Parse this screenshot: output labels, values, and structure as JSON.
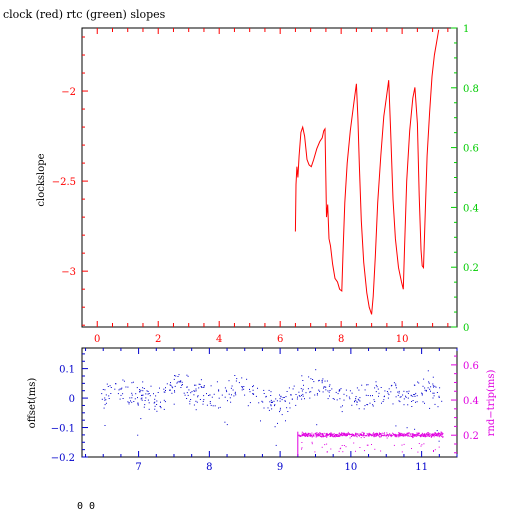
{
  "colors": {
    "axes": "#000000",
    "clock": "#ff0000",
    "rtc": "#00cc00",
    "offset": "#0000cc",
    "rndtrip": "#e000e0"
  },
  "footer_text": "0 0",
  "chart_data": [
    {
      "type": "line",
      "title": "clock (red) rtc (green) slopes",
      "xlabel": "",
      "ylabel": "clockslope",
      "xlim": [
        -0.5,
        11.8
      ],
      "ylim": [
        -3.31,
        -1.65
      ],
      "x_ticks": [
        0,
        2,
        4,
        6,
        8,
        10
      ],
      "y_ticks": [
        -3,
        -2.5,
        -2
      ],
      "y_tick_labels": [
        "−3",
        "−2.5",
        "−2"
      ],
      "y2lim": [
        0,
        1
      ],
      "y2_ticks": [
        0,
        0.2,
        0.4,
        0.6,
        0.8,
        1
      ],
      "y2_tick_labels": [
        "0",
        "0.2",
        "0.4",
        "0.6",
        "0.8",
        "1"
      ],
      "series": [
        {
          "name": "clock",
          "axis": "left",
          "points": [
            [
              6.5,
              -2.78
            ],
            [
              6.52,
              -2.52
            ],
            [
              6.55,
              -2.42
            ],
            [
              6.58,
              -2.48
            ],
            [
              6.62,
              -2.36
            ],
            [
              6.68,
              -2.23
            ],
            [
              6.74,
              -2.2
            ],
            [
              6.8,
              -2.25
            ],
            [
              6.88,
              -2.38
            ],
            [
              6.95,
              -2.41
            ],
            [
              7.02,
              -2.42
            ],
            [
              7.1,
              -2.38
            ],
            [
              7.2,
              -2.32
            ],
            [
              7.3,
              -2.28
            ],
            [
              7.38,
              -2.26
            ],
            [
              7.43,
              -2.22
            ],
            [
              7.47,
              -2.21
            ],
            [
              7.5,
              -2.5
            ],
            [
              7.52,
              -2.7
            ],
            [
              7.56,
              -2.63
            ],
            [
              7.6,
              -2.82
            ],
            [
              7.65,
              -2.86
            ],
            [
              7.72,
              -2.96
            ],
            [
              7.8,
              -3.04
            ],
            [
              7.88,
              -3.06
            ],
            [
              7.95,
              -3.1
            ],
            [
              8.02,
              -3.11
            ],
            [
              8.06,
              -2.9
            ],
            [
              8.12,
              -2.62
            ],
            [
              8.2,
              -2.4
            ],
            [
              8.3,
              -2.22
            ],
            [
              8.42,
              -2.06
            ],
            [
              8.5,
              -1.96
            ],
            [
              8.55,
              -2.15
            ],
            [
              8.6,
              -2.42
            ],
            [
              8.66,
              -2.72
            ],
            [
              8.74,
              -2.95
            ],
            [
              8.84,
              -3.12
            ],
            [
              8.92,
              -3.2
            ],
            [
              9.0,
              -3.24
            ],
            [
              9.05,
              -3.14
            ],
            [
              9.12,
              -2.92
            ],
            [
              9.2,
              -2.62
            ],
            [
              9.3,
              -2.36
            ],
            [
              9.4,
              -2.14
            ],
            [
              9.48,
              -2.04
            ],
            [
              9.56,
              -1.94
            ],
            [
              9.62,
              -2.2
            ],
            [
              9.7,
              -2.6
            ],
            [
              9.78,
              -2.82
            ],
            [
              9.88,
              -2.98
            ],
            [
              9.98,
              -3.06
            ],
            [
              10.04,
              -3.1
            ],
            [
              10.08,
              -2.86
            ],
            [
              10.15,
              -2.5
            ],
            [
              10.25,
              -2.22
            ],
            [
              10.35,
              -2.04
            ],
            [
              10.42,
              -1.98
            ],
            [
              10.5,
              -2.18
            ],
            [
              10.56,
              -2.58
            ],
            [
              10.62,
              -2.88
            ],
            [
              10.66,
              -2.97
            ],
            [
              10.7,
              -2.98
            ],
            [
              10.75,
              -2.72
            ],
            [
              10.82,
              -2.36
            ],
            [
              10.9,
              -2.12
            ],
            [
              10.98,
              -1.92
            ],
            [
              11.06,
              -1.8
            ],
            [
              11.14,
              -1.72
            ],
            [
              11.2,
              -1.66
            ]
          ]
        }
      ]
    },
    {
      "type": "scatter",
      "title": "",
      "xlabel": "",
      "ylabel": "offset(ms)",
      "y2label": "rnd−trip(ms)",
      "xlim": [
        6.2,
        11.5
      ],
      "ylim": [
        -0.2,
        0.17
      ],
      "x_ticks": [
        7,
        8,
        9,
        10,
        11
      ],
      "y_ticks": [
        -0.2,
        -0.1,
        0,
        0.1
      ],
      "y_tick_labels": [
        "−0.2",
        "−0.1",
        "0",
        "0.1"
      ],
      "y2lim": [
        0.076,
        0.696
      ],
      "y2_ticks": [
        0.2,
        0.4,
        0.6
      ],
      "y2_tick_labels": [
        "0.2",
        "0.4",
        "0.6"
      ],
      "series": [
        {
          "name": "offset",
          "axis": "left",
          "x_range": [
            6.45,
            11.3
          ],
          "trend": [
            [
              6.45,
              0.0
            ],
            [
              6.7,
              0.03
            ],
            [
              7.0,
              0.0
            ],
            [
              7.3,
              -0.01
            ],
            [
              7.55,
              0.06
            ],
            [
              7.8,
              0.01
            ],
            [
              8.1,
              0.0
            ],
            [
              8.4,
              0.04
            ],
            [
              8.7,
              0.0
            ],
            [
              9.0,
              -0.02
            ],
            [
              9.3,
              0.03
            ],
            [
              9.6,
              0.04
            ],
            [
              9.9,
              -0.01
            ],
            [
              10.2,
              0.0
            ],
            [
              10.5,
              0.03
            ],
            [
              10.8,
              0.01
            ],
            [
              11.1,
              0.04
            ],
            [
              11.3,
              -0.01
            ]
          ],
          "spread": 0.045,
          "n_points": 520
        },
        {
          "name": "rnd-trip",
          "axis": "right",
          "x_range": [
            9.25,
            11.3
          ],
          "center": 0.205,
          "spread": 0.02,
          "n_points": 700
        }
      ]
    }
  ]
}
